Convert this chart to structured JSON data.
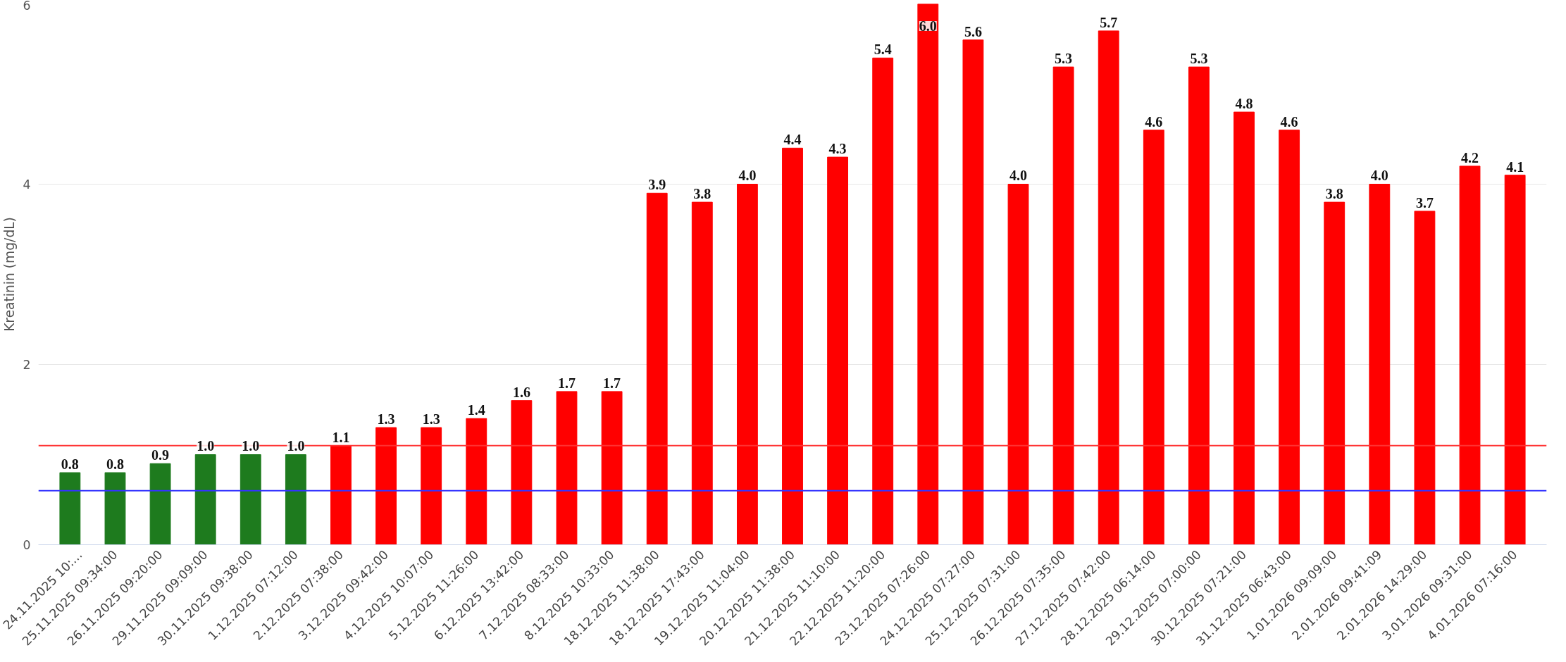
{
  "chart_data": {
    "type": "bar",
    "ylabel": "Kreatinin (mg/dL)",
    "categories": [
      "24.11.2025 10:…",
      "25.11.2025 09:34:00",
      "26.11.2025 09:20:00",
      "29.11.2025 09:09:00",
      "30.11.2025 09:38:00",
      "1.12.2025 07:12:00",
      "2.12.2025 07:38:00",
      "3.12.2025 09:42:00",
      "4.12.2025 10:07:00",
      "5.12.2025 11:26:00",
      "6.12.2025 13:42:00",
      "7.12.2025 08:33:00",
      "8.12.2025 10:33:00",
      "18.12.2025 11:38:00",
      "18.12.2025 17:43:00",
      "19.12.2025 11:04:00",
      "20.12.2025 11:38:00",
      "21.12.2025 11:10:00",
      "22.12.2025 11:20:00",
      "23.12.2025 07:26:00",
      "24.12.2025 07:27:00",
      "25.12.2025 07:31:00",
      "26.12.2025 07:35:00",
      "27.12.2025 07:42:00",
      "28.12.2025 06:14:00",
      "29.12.2025 07:00:00",
      "30.12.2025 07:21:00",
      "31.12.2025 06:43:00",
      "1.01.2026 09:09:00",
      "2.01.2026 09:41:09",
      "2.01.2026 14:29:00",
      "3.01.2026 09:31:00",
      "4.01.2026 07:16:00"
    ],
    "values": [
      0.8,
      0.8,
      0.9,
      1.0,
      1.0,
      1.0,
      1.1,
      1.3,
      1.3,
      1.4,
      1.6,
      1.7,
      1.7,
      3.9,
      3.8,
      4.0,
      4.4,
      4.3,
      5.4,
      6.0,
      5.6,
      4.0,
      5.3,
      5.7,
      4.6,
      5.3,
      4.8,
      4.6,
      3.8,
      4.0,
      3.7,
      4.2,
      4.1
    ],
    "colors": [
      "#1e7b1e",
      "#1e7b1e",
      "#1e7b1e",
      "#1e7b1e",
      "#1e7b1e",
      "#1e7b1e",
      "#ff0000",
      "#ff0000",
      "#ff0000",
      "#ff0000",
      "#ff0000",
      "#ff0000",
      "#ff0000",
      "#ff0000",
      "#ff0000",
      "#ff0000",
      "#ff0000",
      "#ff0000",
      "#ff0000",
      "#ff0000",
      "#ff0000",
      "#ff0000",
      "#ff0000",
      "#ff0000",
      "#ff0000",
      "#ff0000",
      "#ff0000",
      "#ff0000",
      "#ff0000",
      "#ff0000",
      "#ff0000",
      "#ff0000",
      "#ff0000"
    ],
    "ref_lines": [
      {
        "axis": "y",
        "value": 1.1,
        "color": "#ff3333"
      },
      {
        "axis": "y",
        "value": 0.6,
        "color": "#3333ff"
      }
    ],
    "value_labels": [
      "0.8",
      "0.8",
      "0.9",
      "1.0",
      "1.0",
      "1.0",
      "1.1",
      "1.3",
      "1.3",
      "1.4",
      "1.6",
      "1.7",
      "1.7",
      "3.9",
      "3.8",
      "4.0",
      "4.4",
      "4.3",
      "5.4",
      "6.0",
      "5.6",
      "4.0",
      "5.3",
      "5.7",
      "4.6",
      "5.3",
      "4.8",
      "4.6",
      "3.8",
      "4.0",
      "3.7",
      "4.2",
      "4.1"
    ],
    "ylim": [
      0,
      6
    ],
    "yticks": [
      0,
      2,
      4,
      6
    ],
    "grid": "y"
  }
}
